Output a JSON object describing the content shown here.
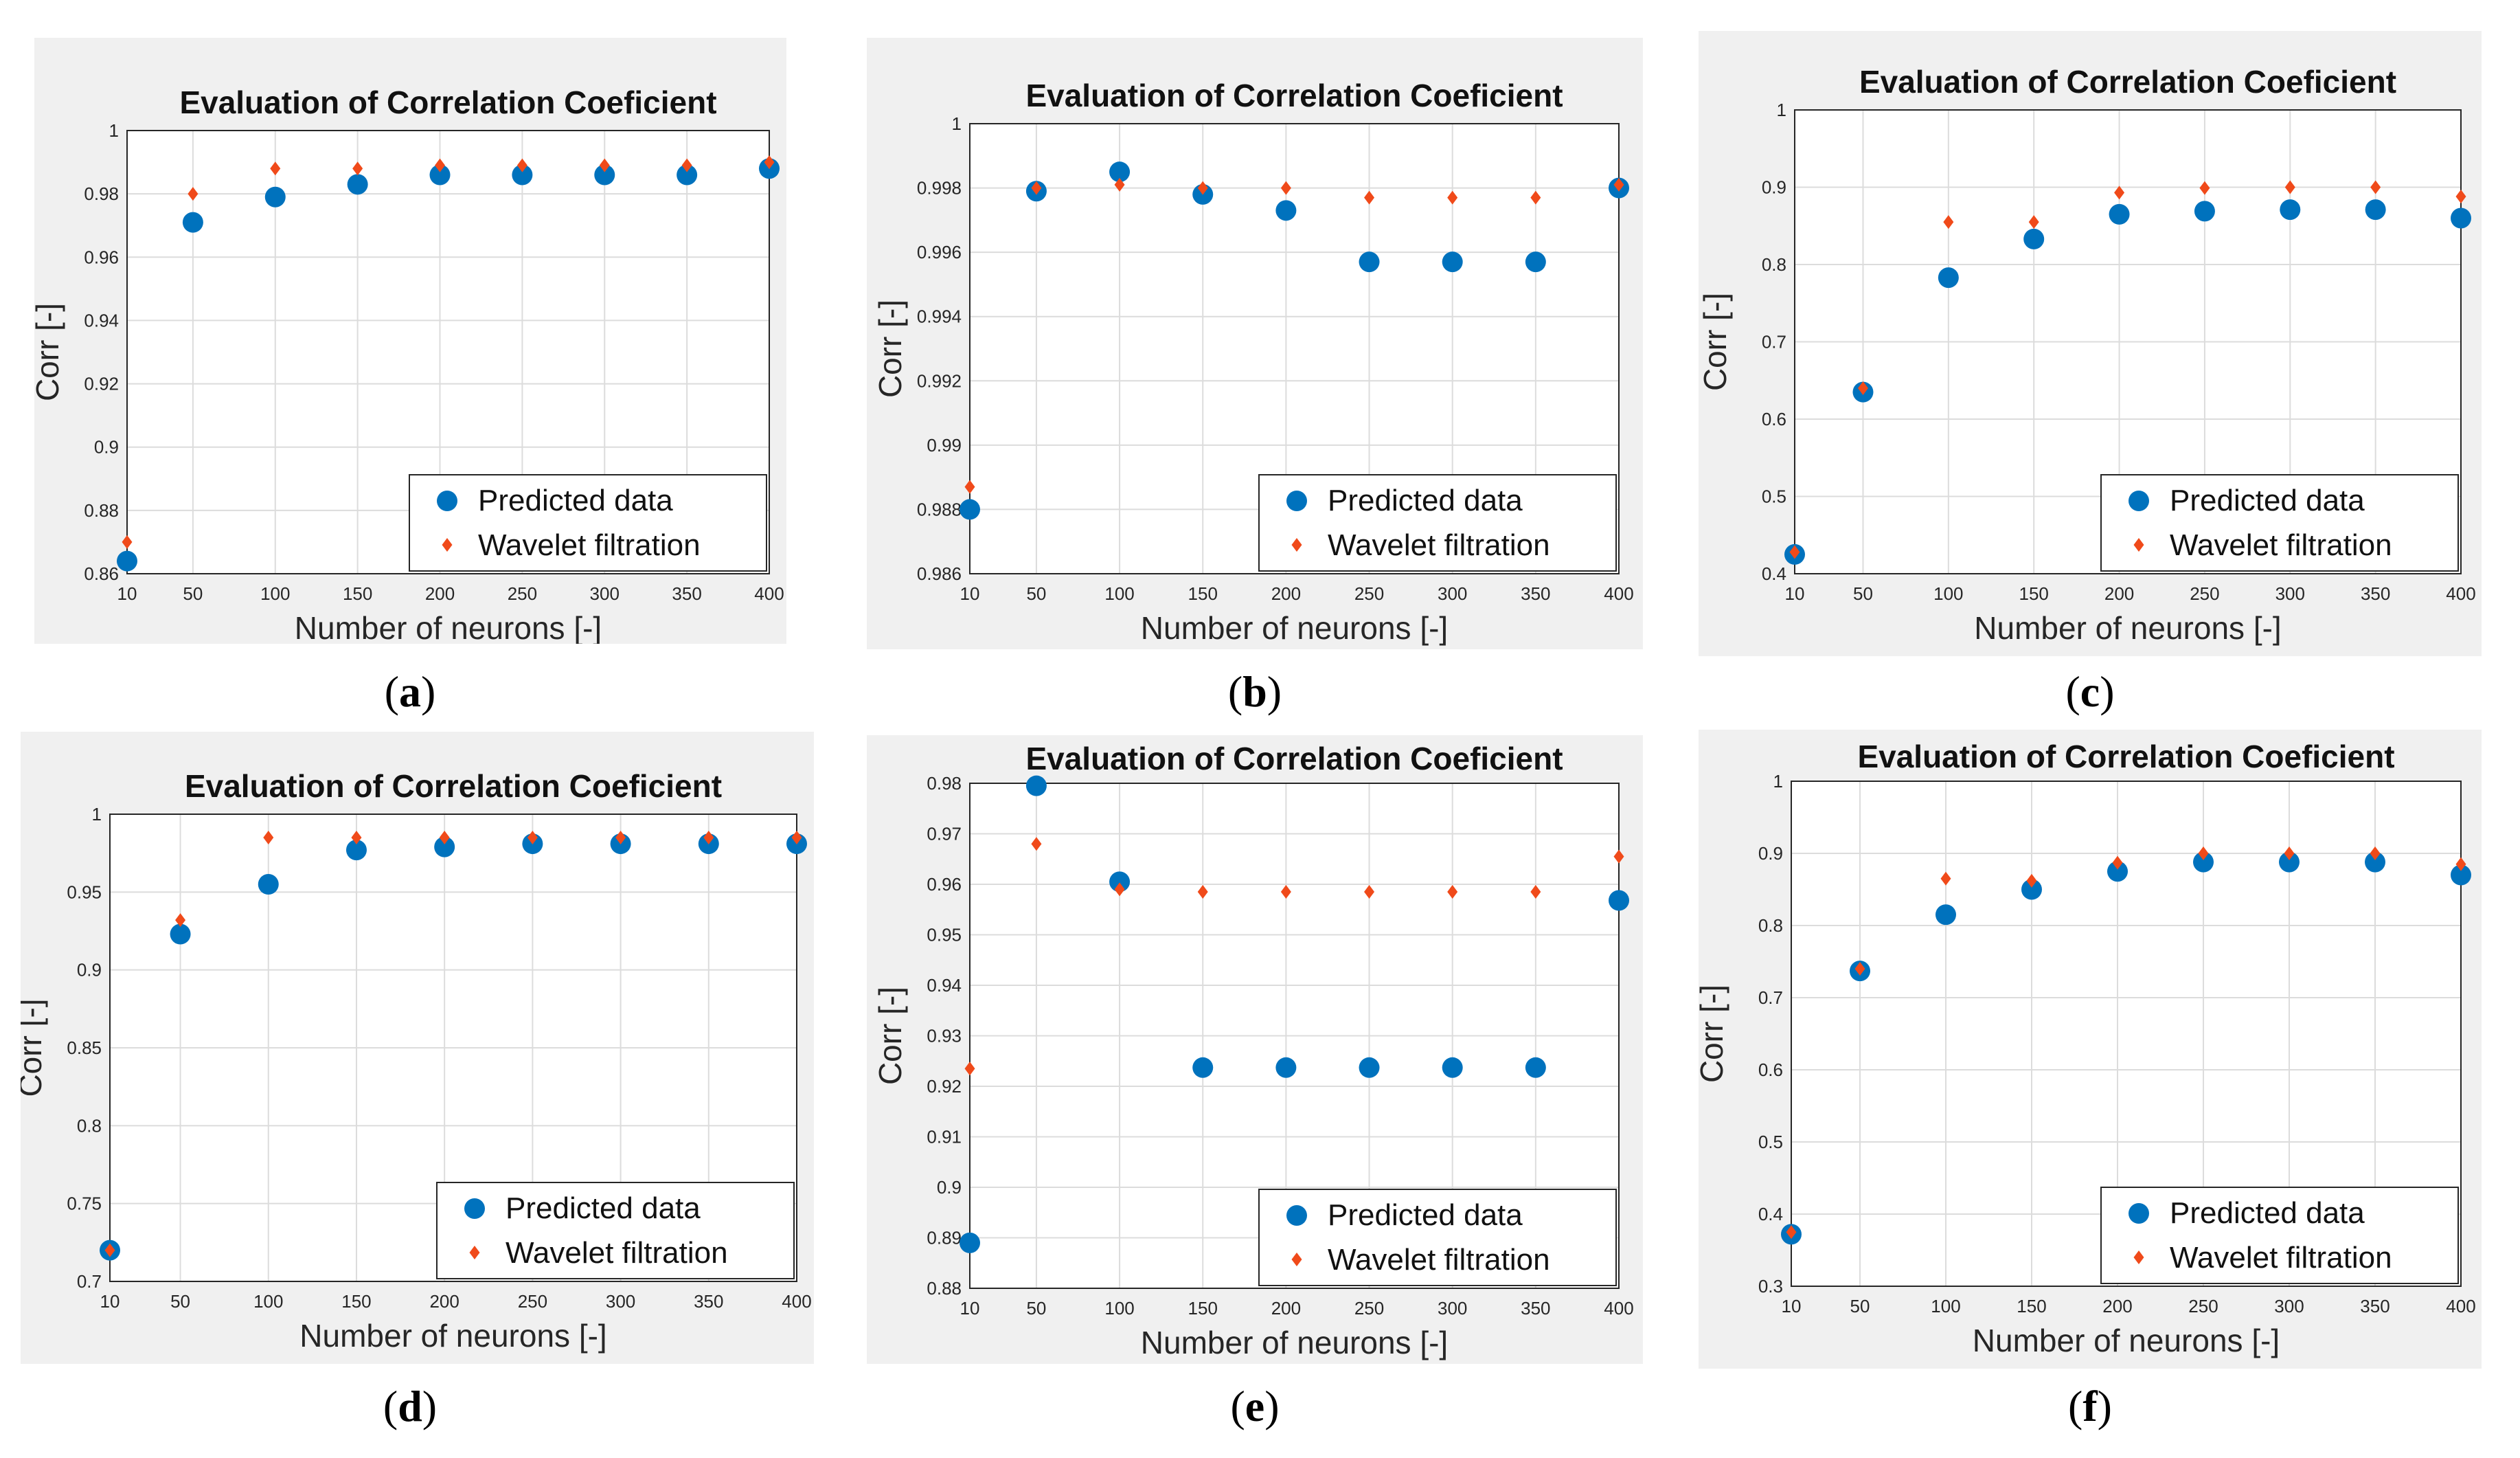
{
  "colors": {
    "predicted": "#0072bd",
    "wavelet": "#f04a1a",
    "panel_bg": "#f0f0f0",
    "grid": "#dcdcdc"
  },
  "chart_data": [
    {
      "id": "a",
      "caption": "a",
      "type": "scatter",
      "title": "Evaluation of Correlation Coeficient",
      "xlabel": "Number of neurons [-]",
      "ylabel": "Corr [-]",
      "x": [
        10,
        50,
        100,
        150,
        200,
        250,
        300,
        350,
        400
      ],
      "x_tick_labels": [
        "10",
        "50",
        "100",
        "150",
        "200",
        "250",
        "300",
        "350",
        "400"
      ],
      "ylim": [
        0.86,
        1
      ],
      "y_ticks": [
        0.86,
        0.88,
        0.9,
        0.92,
        0.94,
        0.96,
        0.98,
        1
      ],
      "y_tick_labels": [
        "0.86",
        "0.88",
        "0.9",
        "0.92",
        "0.94",
        "0.96",
        "0.98",
        "1"
      ],
      "legend_position": "bottom-right",
      "series": [
        {
          "name": "Predicted data",
          "marker": "circle",
          "values": [
            0.864,
            0.971,
            0.979,
            0.983,
            0.986,
            0.986,
            0.986,
            0.986,
            0.988
          ]
        },
        {
          "name": "Wavelet filtration",
          "marker": "diamond",
          "values": [
            0.87,
            0.98,
            0.988,
            0.988,
            0.989,
            0.989,
            0.989,
            0.989,
            0.99
          ]
        }
      ]
    },
    {
      "id": "b",
      "caption": "b",
      "type": "scatter",
      "title": "Evaluation of Correlation Coeficient",
      "xlabel": "Number of neurons [-]",
      "ylabel": "Corr [-]",
      "x": [
        10,
        50,
        100,
        150,
        200,
        250,
        300,
        350,
        400
      ],
      "x_tick_labels": [
        "10",
        "50",
        "100",
        "150",
        "200",
        "250",
        "300",
        "350",
        "400"
      ],
      "ylim": [
        0.986,
        1
      ],
      "y_ticks": [
        0.986,
        0.988,
        0.99,
        0.992,
        0.994,
        0.996,
        0.998,
        1
      ],
      "y_tick_labels": [
        "0.986",
        "0.988",
        "0.99",
        "0.992",
        "0.994",
        "0.996",
        "0.998",
        "1"
      ],
      "legend_position": "bottom-right",
      "series": [
        {
          "name": "Predicted data",
          "marker": "circle",
          "values": [
            0.988,
            0.9979,
            0.9985,
            0.9978,
            0.9973,
            0.9957,
            0.9957,
            0.9957,
            0.998
          ]
        },
        {
          "name": "Wavelet filtration",
          "marker": "diamond",
          "values": [
            0.9887,
            0.998,
            0.9981,
            0.998,
            0.998,
            0.9977,
            0.9977,
            0.9977,
            0.9981
          ]
        }
      ]
    },
    {
      "id": "c",
      "caption": "c",
      "type": "scatter",
      "title": "Evaluation of Correlation Coeficient",
      "xlabel": "Number of neurons [-]",
      "ylabel": "Corr [-]",
      "x": [
        10,
        50,
        100,
        150,
        200,
        250,
        300,
        350,
        400
      ],
      "x_tick_labels": [
        "10",
        "50",
        "100",
        "150",
        "200",
        "250",
        "300",
        "350",
        "400"
      ],
      "ylim": [
        0.4,
        1
      ],
      "y_ticks": [
        0.4,
        0.5,
        0.6,
        0.7,
        0.8,
        0.9,
        1
      ],
      "y_tick_labels": [
        "0.4",
        "0.5",
        "0.6",
        "0.7",
        "0.8",
        "0.9",
        "1"
      ],
      "legend_position": "bottom-right",
      "series": [
        {
          "name": "Predicted data",
          "marker": "circle",
          "values": [
            0.425,
            0.635,
            0.783,
            0.833,
            0.865,
            0.869,
            0.871,
            0.871,
            0.86
          ]
        },
        {
          "name": "Wavelet filtration",
          "marker": "diamond",
          "values": [
            0.428,
            0.64,
            0.855,
            0.855,
            0.893,
            0.899,
            0.9,
            0.9,
            0.888
          ]
        }
      ]
    },
    {
      "id": "d",
      "caption": "d",
      "type": "scatter",
      "title": "Evaluation of Correlation Coeficient",
      "xlabel": "Number of neurons [-]",
      "ylabel": "Corr [-]",
      "x": [
        10,
        50,
        100,
        150,
        200,
        250,
        300,
        350,
        400
      ],
      "x_tick_labels": [
        "10",
        "50",
        "100",
        "150",
        "200",
        "250",
        "300",
        "350",
        "400"
      ],
      "ylim": [
        0.7,
        1
      ],
      "y_ticks": [
        0.7,
        0.75,
        0.8,
        0.85,
        0.9,
        0.95,
        1
      ],
      "y_tick_labels": [
        "0.7",
        "0.75",
        "0.8",
        "0.85",
        "0.9",
        "0.95",
        "1"
      ],
      "legend_position": "bottom-right",
      "series": [
        {
          "name": "Predicted data",
          "marker": "circle",
          "values": [
            0.72,
            0.923,
            0.955,
            0.977,
            0.979,
            0.981,
            0.981,
            0.981,
            0.981
          ]
        },
        {
          "name": "Wavelet filtration",
          "marker": "diamond",
          "values": [
            0.72,
            0.932,
            0.985,
            0.985,
            0.985,
            0.985,
            0.985,
            0.985,
            0.985
          ]
        }
      ]
    },
    {
      "id": "e",
      "caption": "e",
      "type": "scatter",
      "title": "Evaluation of Correlation Coeficient",
      "xlabel": "Number of neurons [-]",
      "ylabel": "Corr [-]",
      "x": [
        10,
        50,
        100,
        150,
        200,
        250,
        300,
        350,
        400
      ],
      "x_tick_labels": [
        "10",
        "50",
        "100",
        "150",
        "200",
        "250",
        "300",
        "350",
        "400"
      ],
      "ylim": [
        0.88,
        0.98
      ],
      "y_ticks": [
        0.88,
        0.89,
        0.9,
        0.91,
        0.92,
        0.93,
        0.94,
        0.95,
        0.96,
        0.97,
        0.98
      ],
      "y_tick_labels": [
        "0.88",
        "0.89",
        "0.9",
        "0.91",
        "0.92",
        "0.93",
        "0.94",
        "0.95",
        "0.96",
        "0.97",
        "0.98"
      ],
      "legend_position": "bottom-right",
      "series": [
        {
          "name": "Predicted data",
          "marker": "circle",
          "values": [
            0.889,
            0.9795,
            0.9605,
            0.9237,
            0.9237,
            0.9237,
            0.9237,
            0.9237,
            0.9568
          ]
        },
        {
          "name": "Wavelet filtration",
          "marker": "diamond",
          "values": [
            0.9235,
            0.968,
            0.959,
            0.9585,
            0.9585,
            0.9585,
            0.9585,
            0.9585,
            0.9655
          ]
        }
      ]
    },
    {
      "id": "f",
      "caption": "f",
      "type": "scatter",
      "title": "Evaluation of Correlation Coeficient",
      "xlabel": "Number of neurons [-]",
      "ylabel": "Corr [-]",
      "x": [
        10,
        50,
        100,
        150,
        200,
        250,
        300,
        350,
        400
      ],
      "x_tick_labels": [
        "10",
        "50",
        "100",
        "150",
        "200",
        "250",
        "300",
        "350",
        "400"
      ],
      "ylim": [
        0.3,
        1
      ],
      "y_ticks": [
        0.3,
        0.4,
        0.5,
        0.6,
        0.7,
        0.8,
        0.9,
        1
      ],
      "y_tick_labels": [
        "0.3",
        "0.4",
        "0.5",
        "0.6",
        "0.7",
        "0.8",
        "0.9",
        "1"
      ],
      "legend_position": "bottom-right",
      "series": [
        {
          "name": "Predicted data",
          "marker": "circle",
          "values": [
            0.372,
            0.737,
            0.815,
            0.85,
            0.875,
            0.888,
            0.888,
            0.888,
            0.87
          ]
        },
        {
          "name": "Wavelet filtration",
          "marker": "diamond",
          "values": [
            0.375,
            0.74,
            0.865,
            0.862,
            0.887,
            0.9,
            0.9,
            0.9,
            0.885
          ]
        }
      ]
    }
  ]
}
